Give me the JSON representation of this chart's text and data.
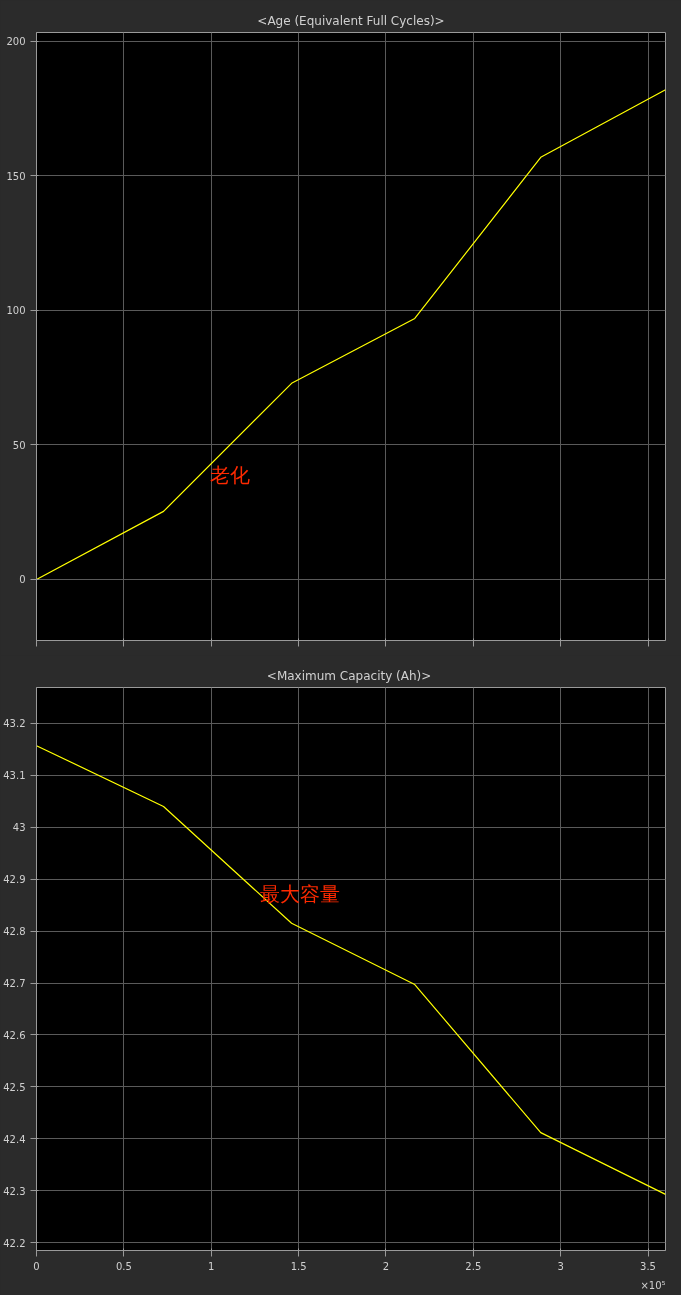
{
  "chart_data": [
    {
      "type": "line",
      "title": "<Age (Equivalent Full Cycles)>",
      "x": [
        0,
        0.727,
        1.46,
        2.165,
        2.886,
        3.6
      ],
      "series": [
        {
          "color": "#ffff00",
          "values": [
            0,
            25.3,
            72.9,
            97,
            156.9,
            182
          ]
        }
      ],
      "xlim": [
        0,
        3.6
      ],
      "xticks": [
        0,
        0.5,
        1,
        1.5,
        2,
        2.5,
        3,
        3.5
      ],
      "ylim": [
        -22.7,
        203.3
      ],
      "yticks": [
        0,
        50,
        100,
        150,
        200
      ],
      "grid": true,
      "tick_labels": "y",
      "annotations": [
        "老化"
      ]
    },
    {
      "type": "line",
      "title": "<Maximum Capacity  (Ah)>",
      "x": [
        0,
        0.727,
        1.46,
        2.165,
        2.886,
        3.6
      ],
      "series": [
        {
          "color": "#ffff00",
          "values": [
            43.157,
            43.04,
            42.815,
            42.697,
            42.412,
            42.293
          ]
        }
      ],
      "xlim": [
        0,
        3.6
      ],
      "xticks": [
        0,
        0.5,
        1,
        1.5,
        2,
        2.5,
        3,
        3.5
      ],
      "ylim": [
        42.185,
        43.269
      ],
      "yticks": [
        42.2,
        42.3,
        42.4,
        42.5,
        42.6,
        42.7,
        42.8,
        42.9,
        43,
        43.1,
        43.2
      ],
      "grid": true,
      "annotations": [
        "最大容量",
        "×10⁵"
      ]
    }
  ]
}
